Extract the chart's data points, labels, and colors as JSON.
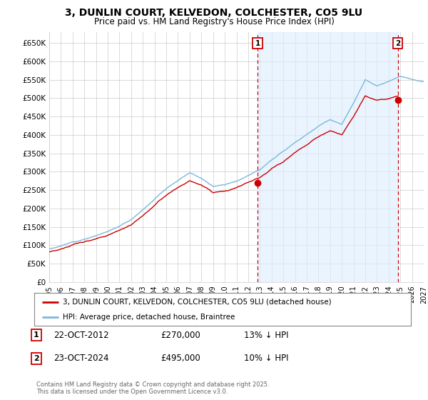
{
  "title_line1": "3, DUNLIN COURT, KELVEDON, COLCHESTER, CO5 9LU",
  "title_line2": "Price paid vs. HM Land Registry's House Price Index (HPI)",
  "ylim": [
    0,
    680000
  ],
  "yticks": [
    0,
    50000,
    100000,
    150000,
    200000,
    250000,
    300000,
    350000,
    400000,
    450000,
    500000,
    550000,
    600000,
    650000
  ],
  "ytick_labels": [
    "£0",
    "£50K",
    "£100K",
    "£150K",
    "£200K",
    "£250K",
    "£300K",
    "£350K",
    "£400K",
    "£450K",
    "£500K",
    "£550K",
    "£600K",
    "£650K"
  ],
  "hpi_color": "#7ab8d9",
  "price_color": "#cc0000",
  "vline_color": "#cc0000",
  "shade_color": "#ddeeff",
  "point1_year": 2012.8,
  "point1_value": 270000,
  "point2_year": 2024.8,
  "point2_value": 495000,
  "legend_line1": "3, DUNLIN COURT, KELVEDON, COLCHESTER, CO5 9LU (detached house)",
  "legend_line2": "HPI: Average price, detached house, Braintree",
  "note1_label": "1",
  "note1_date": "22-OCT-2012",
  "note1_price": "£270,000",
  "note1_hpi": "13% ↓ HPI",
  "note2_label": "2",
  "note2_date": "23-OCT-2024",
  "note2_price": "£495,000",
  "note2_hpi": "10% ↓ HPI",
  "copyright": "Contains HM Land Registry data © Crown copyright and database right 2025.\nThis data is licensed under the Open Government Licence v3.0.",
  "background_color": "#ffffff",
  "grid_color": "#cccccc",
  "xmin": 1995,
  "xmax": 2027,
  "xticks": [
    1995,
    1996,
    1997,
    1998,
    1999,
    2000,
    2001,
    2002,
    2003,
    2004,
    2005,
    2006,
    2007,
    2008,
    2009,
    2010,
    2011,
    2012,
    2013,
    2014,
    2015,
    2016,
    2017,
    2018,
    2019,
    2020,
    2021,
    2022,
    2023,
    2024,
    2025,
    2026,
    2027
  ]
}
